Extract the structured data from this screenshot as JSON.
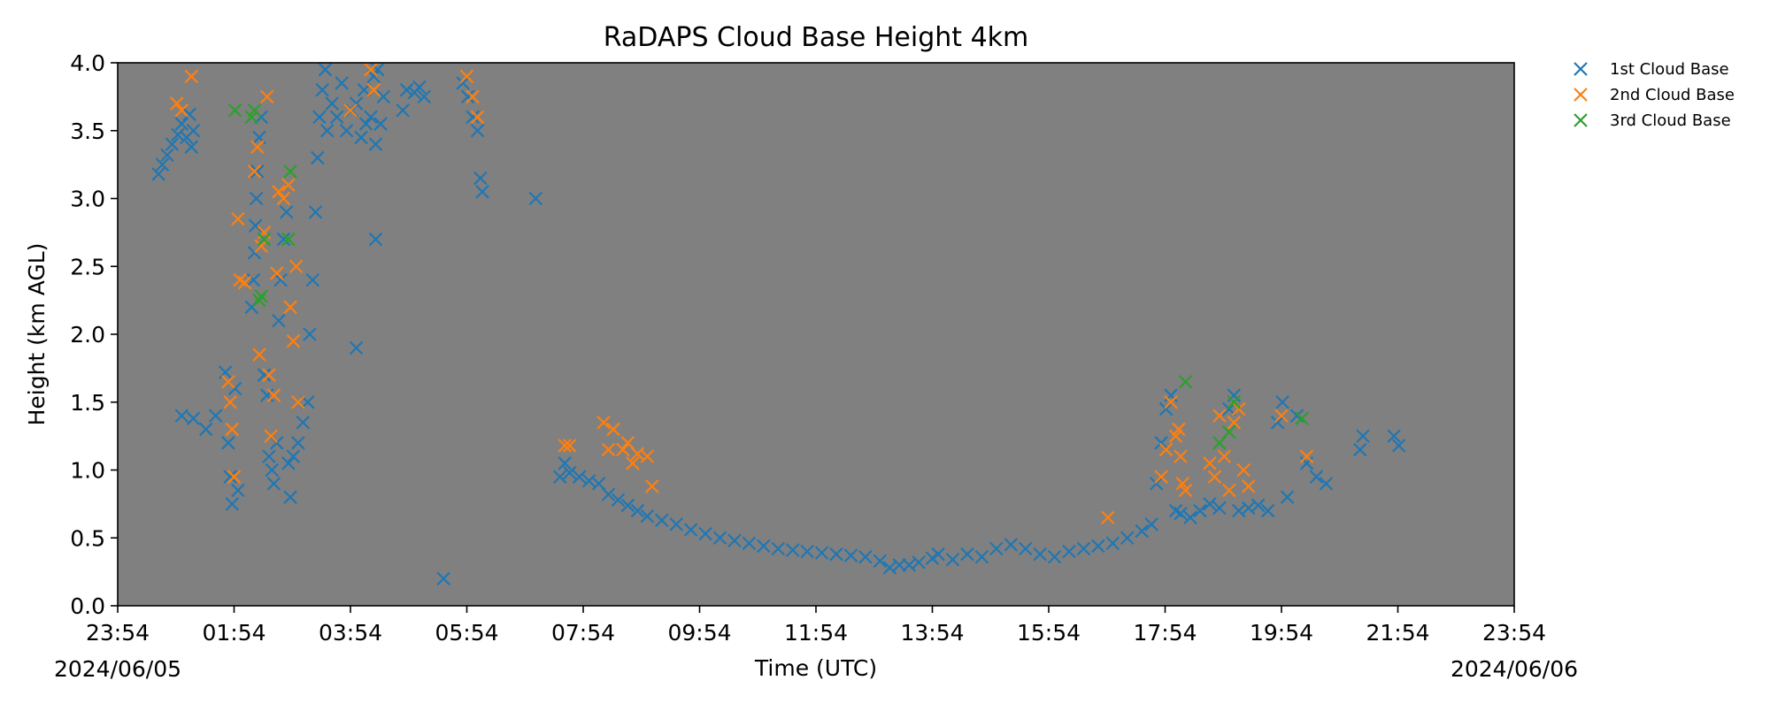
{
  "chart_data": {
    "type": "scatter",
    "title": "RaDAPS Cloud Base Height 4km",
    "xlabel": "Time (UTC)",
    "ylabel": "Height (km AGL)",
    "x_unit": "time of day (UTC)",
    "xlim": [
      "2024-06-05 23:54",
      "2024-06-06 23:54"
    ],
    "ylim": [
      0.0,
      4.0
    ],
    "x_ticks": [
      "23:54",
      "01:54",
      "03:54",
      "05:54",
      "07:54",
      "09:54",
      "11:54",
      "13:54",
      "15:54",
      "17:54",
      "19:54",
      "21:54",
      "23:54"
    ],
    "y_ticks": [
      "0.0",
      "0.5",
      "1.0",
      "1.5",
      "2.0",
      "2.5",
      "3.0",
      "3.5",
      "4.0"
    ],
    "date_labels": {
      "start": "2024/06/05",
      "end": "2024/06/06"
    },
    "plot_background": "#808080",
    "grid": false,
    "legend_position": "outside-top-right",
    "series": [
      {
        "name": "1st Cloud Base",
        "color": "#1f77b4",
        "marker": "x",
        "points": [
          [
            "00:36",
            3.18
          ],
          [
            "00:40",
            3.25
          ],
          [
            "00:45",
            3.32
          ],
          [
            "00:50",
            3.4
          ],
          [
            "00:56",
            3.47
          ],
          [
            "01:00",
            3.55
          ],
          [
            "01:05",
            3.45
          ],
          [
            "01:08",
            3.62
          ],
          [
            "01:10",
            3.38
          ],
          [
            "01:12",
            3.5
          ],
          [
            "01:00",
            1.4
          ],
          [
            "01:12",
            1.38
          ],
          [
            "01:25",
            1.3
          ],
          [
            "01:35",
            1.4
          ],
          [
            "01:45",
            1.72
          ],
          [
            "01:48",
            1.2
          ],
          [
            "01:50",
            0.95
          ],
          [
            "01:52",
            0.75
          ],
          [
            "01:55",
            1.6
          ],
          [
            "01:58",
            0.85
          ],
          [
            "02:12",
            2.2
          ],
          [
            "02:14",
            2.4
          ],
          [
            "02:15",
            2.6
          ],
          [
            "02:16",
            2.8
          ],
          [
            "02:17",
            3.0
          ],
          [
            "02:18",
            3.2
          ],
          [
            "02:20",
            3.45
          ],
          [
            "02:22",
            3.6
          ],
          [
            "02:25",
            1.7
          ],
          [
            "02:28",
            1.55
          ],
          [
            "02:30",
            1.1
          ],
          [
            "02:33",
            1.0
          ],
          [
            "02:35",
            0.9
          ],
          [
            "02:38",
            1.2
          ],
          [
            "02:40",
            2.1
          ],
          [
            "02:42",
            2.4
          ],
          [
            "02:45",
            2.7
          ],
          [
            "02:48",
            2.9
          ],
          [
            "02:50",
            1.05
          ],
          [
            "02:52",
            0.8
          ],
          [
            "02:55",
            1.1
          ],
          [
            "03:00",
            1.2
          ],
          [
            "03:05",
            1.35
          ],
          [
            "03:10",
            1.5
          ],
          [
            "03:12",
            2.0
          ],
          [
            "03:15",
            2.4
          ],
          [
            "03:18",
            2.9
          ],
          [
            "03:20",
            3.3
          ],
          [
            "03:22",
            3.6
          ],
          [
            "03:25",
            3.8
          ],
          [
            "03:28",
            3.95
          ],
          [
            "03:30",
            3.5
          ],
          [
            "03:35",
            3.7
          ],
          [
            "03:40",
            3.6
          ],
          [
            "03:45",
            3.85
          ],
          [
            "03:50",
            3.5
          ],
          [
            "03:55",
            3.65
          ],
          [
            "04:00",
            1.9
          ],
          [
            "04:00",
            3.7
          ],
          [
            "04:05",
            3.45
          ],
          [
            "04:08",
            3.8
          ],
          [
            "04:10",
            3.55
          ],
          [
            "04:15",
            3.6
          ],
          [
            "04:18",
            3.9
          ],
          [
            "04:20",
            3.4
          ],
          [
            "04:25",
            3.55
          ],
          [
            "04:28",
            3.75
          ],
          [
            "04:22",
            3.95
          ],
          [
            "04:20",
            2.7
          ],
          [
            "04:48",
            3.65
          ],
          [
            "04:52",
            3.8
          ],
          [
            "05:00",
            3.78
          ],
          [
            "05:05",
            3.82
          ],
          [
            "05:10",
            3.75
          ],
          [
            "05:30",
            0.2
          ],
          [
            "05:50",
            3.85
          ],
          [
            "05:55",
            3.75
          ],
          [
            "06:00",
            3.6
          ],
          [
            "06:05",
            3.5
          ],
          [
            "06:08",
            3.15
          ],
          [
            "06:10",
            3.05
          ],
          [
            "07:05",
            3.0
          ],
          [
            "07:30",
            0.95
          ],
          [
            "07:35",
            1.05
          ],
          [
            "07:40",
            0.98
          ],
          [
            "07:50",
            0.95
          ],
          [
            "08:00",
            0.92
          ],
          [
            "08:10",
            0.9
          ],
          [
            "08:20",
            0.82
          ],
          [
            "08:30",
            0.78
          ],
          [
            "08:40",
            0.74
          ],
          [
            "08:50",
            0.7
          ],
          [
            "09:00",
            0.66
          ],
          [
            "09:15",
            0.63
          ],
          [
            "09:30",
            0.6
          ],
          [
            "09:45",
            0.56
          ],
          [
            "10:00",
            0.53
          ],
          [
            "10:15",
            0.5
          ],
          [
            "10:30",
            0.48
          ],
          [
            "10:45",
            0.46
          ],
          [
            "11:00",
            0.44
          ],
          [
            "11:15",
            0.42
          ],
          [
            "11:30",
            0.41
          ],
          [
            "11:45",
            0.4
          ],
          [
            "12:00",
            0.39
          ],
          [
            "12:15",
            0.38
          ],
          [
            "12:30",
            0.37
          ],
          [
            "12:45",
            0.36
          ],
          [
            "13:00",
            0.33
          ],
          [
            "13:10",
            0.28
          ],
          [
            "13:20",
            0.3
          ],
          [
            "13:30",
            0.3
          ],
          [
            "13:40",
            0.32
          ],
          [
            "13:54",
            0.35
          ],
          [
            "14:00",
            0.38
          ],
          [
            "14:15",
            0.34
          ],
          [
            "14:30",
            0.38
          ],
          [
            "14:45",
            0.36
          ],
          [
            "15:00",
            0.42
          ],
          [
            "15:15",
            0.45
          ],
          [
            "15:30",
            0.42
          ],
          [
            "15:45",
            0.38
          ],
          [
            "16:00",
            0.36
          ],
          [
            "16:15",
            0.4
          ],
          [
            "16:30",
            0.42
          ],
          [
            "16:45",
            0.44
          ],
          [
            "17:00",
            0.46
          ],
          [
            "17:15",
            0.5
          ],
          [
            "17:30",
            0.55
          ],
          [
            "17:40",
            0.6
          ],
          [
            "17:45",
            0.9
          ],
          [
            "17:50",
            1.2
          ],
          [
            "17:55",
            1.45
          ],
          [
            "18:00",
            1.55
          ],
          [
            "18:05",
            0.7
          ],
          [
            "18:10",
            0.68
          ],
          [
            "18:20",
            0.65
          ],
          [
            "18:30",
            0.7
          ],
          [
            "18:40",
            0.75
          ],
          [
            "18:50",
            0.72
          ],
          [
            "19:00",
            1.45
          ],
          [
            "19:05",
            1.55
          ],
          [
            "19:10",
            0.7
          ],
          [
            "19:20",
            0.72
          ],
          [
            "19:30",
            0.74
          ],
          [
            "19:40",
            0.7
          ],
          [
            "19:50",
            1.35
          ],
          [
            "19:55",
            1.5
          ],
          [
            "20:00",
            0.8
          ],
          [
            "20:10",
            1.4
          ],
          [
            "20:20",
            1.05
          ],
          [
            "20:30",
            0.95
          ],
          [
            "20:40",
            0.9
          ],
          [
            "21:15",
            1.15
          ],
          [
            "21:18",
            1.25
          ],
          [
            "21:50",
            1.25
          ],
          [
            "21:55",
            1.18
          ]
        ]
      },
      {
        "name": "2nd Cloud Base",
        "color": "#ff7f0e",
        "marker": "x",
        "points": [
          [
            "00:55",
            3.7
          ],
          [
            "01:00",
            3.65
          ],
          [
            "01:10",
            3.9
          ],
          [
            "01:48",
            1.65
          ],
          [
            "01:50",
            1.5
          ],
          [
            "01:52",
            1.3
          ],
          [
            "01:54",
            0.95
          ],
          [
            "01:58",
            2.85
          ],
          [
            "02:00",
            2.4
          ],
          [
            "02:05",
            2.38
          ],
          [
            "02:15",
            3.2
          ],
          [
            "02:18",
            3.38
          ],
          [
            "02:20",
            1.85
          ],
          [
            "02:22",
            2.65
          ],
          [
            "02:25",
            2.75
          ],
          [
            "02:28",
            3.75
          ],
          [
            "02:30",
            1.7
          ],
          [
            "02:32",
            1.25
          ],
          [
            "02:35",
            1.55
          ],
          [
            "02:38",
            2.45
          ],
          [
            "02:40",
            3.05
          ],
          [
            "02:45",
            3.0
          ],
          [
            "02:50",
            3.1
          ],
          [
            "02:52",
            2.2
          ],
          [
            "02:55",
            1.95
          ],
          [
            "02:58",
            2.5
          ],
          [
            "03:00",
            1.5
          ],
          [
            "03:54",
            3.65
          ],
          [
            "04:15",
            3.95
          ],
          [
            "04:18",
            3.8
          ],
          [
            "05:54",
            3.9
          ],
          [
            "06:00",
            3.75
          ],
          [
            "06:05",
            3.6
          ],
          [
            "07:35",
            1.18
          ],
          [
            "07:40",
            1.18
          ],
          [
            "08:15",
            1.35
          ],
          [
            "08:20",
            1.15
          ],
          [
            "08:25",
            1.3
          ],
          [
            "08:35",
            1.15
          ],
          [
            "08:40",
            1.2
          ],
          [
            "08:45",
            1.05
          ],
          [
            "08:50",
            1.12
          ],
          [
            "09:00",
            1.1
          ],
          [
            "09:05",
            0.88
          ],
          [
            "16:55",
            0.65
          ],
          [
            "17:50",
            0.95
          ],
          [
            "17:55",
            1.15
          ],
          [
            "18:00",
            1.5
          ],
          [
            "18:05",
            1.25
          ],
          [
            "18:08",
            1.3
          ],
          [
            "18:10",
            1.1
          ],
          [
            "18:12",
            0.9
          ],
          [
            "18:15",
            0.85
          ],
          [
            "18:40",
            1.05
          ],
          [
            "18:45",
            0.95
          ],
          [
            "18:50",
            1.4
          ],
          [
            "18:55",
            1.1
          ],
          [
            "19:00",
            0.85
          ],
          [
            "19:05",
            1.35
          ],
          [
            "19:10",
            1.45
          ],
          [
            "19:15",
            1.0
          ],
          [
            "19:20",
            0.88
          ],
          [
            "19:54",
            1.4
          ],
          [
            "20:20",
            1.1
          ]
        ]
      },
      {
        "name": "3rd Cloud Base",
        "color": "#2ca02c",
        "marker": "x",
        "points": [
          [
            "01:55",
            3.65
          ],
          [
            "02:12",
            3.6
          ],
          [
            "02:15",
            3.65
          ],
          [
            "02:20",
            2.25
          ],
          [
            "02:22",
            2.28
          ],
          [
            "02:25",
            2.7
          ],
          [
            "02:50",
            2.7
          ],
          [
            "02:52",
            3.2
          ],
          [
            "18:15",
            1.65
          ],
          [
            "18:50",
            1.2
          ],
          [
            "19:00",
            1.28
          ],
          [
            "19:05",
            1.5
          ],
          [
            "20:15",
            1.38
          ]
        ]
      }
    ]
  }
}
